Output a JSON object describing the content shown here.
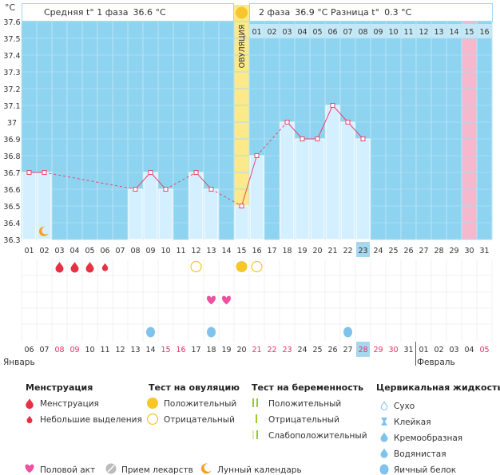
{
  "header": {
    "unit": "°C",
    "phase1_label": "Средняя t° 1 фаза",
    "phase1_value": "36.6 °C",
    "phase2_label": "2 фаза",
    "phase2_value": "36.9 °C",
    "diff_label": "Разница t°",
    "diff_value": "0.3 °C"
  },
  "ovulation_label": "ОВУЛЯЦИЯ",
  "chart_data": {
    "type": "bar",
    "title": "",
    "ylabel": "°C",
    "ylim": [
      36.3,
      37.6
    ],
    "y_ticks": [
      "37.6",
      "37.5",
      "37.4",
      "37.3",
      "37.2",
      "37.1",
      "37",
      "36.9",
      "36.8",
      "36.7",
      "36.6",
      "36.5",
      "36.4",
      "36.3"
    ],
    "cycle_days": [
      "",
      "",
      "",
      "",
      "",
      "",
      "",
      "",
      "",
      "",
      "",
      "",
      "",
      "",
      "",
      "01",
      "02",
      "03",
      "04",
      "05",
      "06",
      "07",
      "08",
      "09",
      "10",
      "11",
      "12",
      "13",
      "14",
      "15",
      "16"
    ],
    "days_of_month": [
      "01",
      "02",
      "03",
      "04",
      "05",
      "06",
      "07",
      "08",
      "09",
      "10",
      "11",
      "12",
      "13",
      "14",
      "15",
      "16",
      "17",
      "18",
      "19",
      "20",
      "21",
      "22",
      "23",
      "24",
      "25",
      "26",
      "27",
      "28",
      "29",
      "30",
      "31"
    ],
    "today_day_index": 22,
    "ovulation_index": 14,
    "predicted_index": 29,
    "temperatures": [
      36.7,
      36.7,
      null,
      null,
      null,
      null,
      null,
      36.6,
      36.7,
      36.6,
      null,
      36.7,
      36.6,
      null,
      36.5,
      36.8,
      null,
      37.0,
      36.9,
      36.9,
      37.1,
      37.0,
      36.9,
      null,
      null,
      null,
      null,
      null,
      null,
      null,
      null
    ],
    "bottom_days": [
      "06",
      "07",
      "08",
      "09",
      "10",
      "11",
      "12",
      "13",
      "14",
      "15",
      "16",
      "17",
      "18",
      "19",
      "20",
      "21",
      "22",
      "23",
      "24",
      "25",
      "26",
      "27",
      "28",
      "29",
      "30",
      "31",
      "01",
      "02",
      "03",
      "04",
      "05"
    ],
    "bottom_weekend": [
      false,
      false,
      true,
      true,
      false,
      false,
      false,
      false,
      false,
      true,
      true,
      false,
      false,
      false,
      false,
      true,
      true,
      true,
      false,
      false,
      false,
      false,
      true,
      true,
      true,
      false,
      false,
      false,
      false,
      false,
      true
    ],
    "bottom_today_index": 22,
    "month_labels": [
      {
        "text": "Январь",
        "index": 0
      },
      {
        "text": "Февраль",
        "index": 26
      }
    ],
    "markers": {
      "menstruation": [
        {
          "index": 2,
          "size": "large"
        },
        {
          "index": 3,
          "size": "large"
        },
        {
          "index": 4,
          "size": "large"
        },
        {
          "index": 5,
          "size": "small"
        }
      ],
      "ovulation_test_negative": [
        11,
        15
      ],
      "ovulation_test_positive": [
        14
      ],
      "intercourse": [
        12,
        13
      ],
      "cervical_egg_white": [
        8,
        12,
        21
      ],
      "moon": [
        1
      ]
    }
  },
  "legend": {
    "menstruation_title": "Менструация",
    "menstruation_items": [
      "Менструация",
      "Небольшие выделения"
    ],
    "ovulation_title": "Тест на овуляцию",
    "ovulation_items": [
      "Положительный",
      "Отрицательный"
    ],
    "pregnancy_title": "Тест на беременность",
    "pregnancy_items": [
      "Положительный",
      "Отрицательный",
      "Слабоположительный"
    ],
    "cervical_title": "Цервикальная жидкость",
    "cervical_items": [
      "Сухо",
      "Клейкая",
      "Кремообразная",
      "Водянистая",
      "Яичный белок"
    ],
    "bottom_items": [
      "Половой акт",
      "Прием лекарств",
      "Лунный календарь"
    ]
  },
  "colors": {
    "plot_bg": "#8ed4f0",
    "bar_fill": "#d4efff",
    "ovulation": "#fbe98a",
    "predicted": "#f6b8cc",
    "line": "#e8456f",
    "drop": "#e83044",
    "heart": "#f050a0",
    "ov_yellow": "#f6c62a",
    "cervical": "#7fc3ec",
    "moon": "#f4a023",
    "today": "#a6d7ee",
    "weekend": "#e83060",
    "preg_green": "#9acb28"
  }
}
